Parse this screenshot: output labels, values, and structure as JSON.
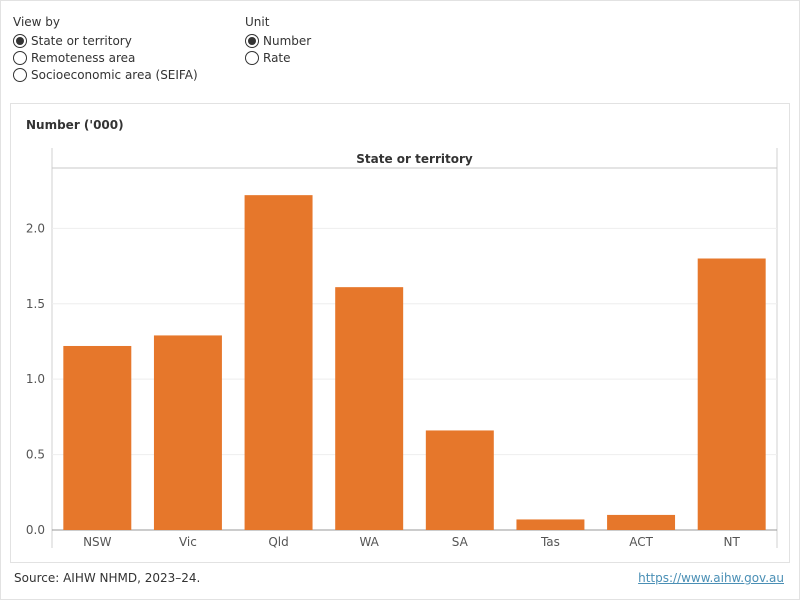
{
  "filters": {
    "view_by": {
      "title": "View by",
      "options": [
        {
          "label": "State or territory",
          "checked": true
        },
        {
          "label": "Remoteness area",
          "checked": false
        },
        {
          "label": "Socioeconomic area (SEIFA)",
          "checked": false
        }
      ]
    },
    "unit": {
      "title": "Unit",
      "options": [
        {
          "label": "Number",
          "checked": true
        },
        {
          "label": "Rate",
          "checked": false
        }
      ]
    }
  },
  "chart_data": {
    "type": "bar",
    "title": "",
    "panel_header": "State or territory",
    "ylabel": "Number ('000)",
    "xlabel": "",
    "categories": [
      "NSW",
      "Vic",
      "Qld",
      "WA",
      "SA",
      "Tas",
      "ACT",
      "NT"
    ],
    "values": [
      1.22,
      1.29,
      2.22,
      1.61,
      0.66,
      0.07,
      0.1,
      1.8
    ],
    "ylim": [
      0,
      2.4
    ],
    "yticks": [
      "0.0",
      "0.5",
      "1.0",
      "1.5",
      "2.0"
    ],
    "grid": true,
    "bar_color": "#e6772b"
  },
  "footer": {
    "source": "Source: AIHW NHMD, 2023–24.",
    "link": "https://www.aihw.gov.au"
  }
}
